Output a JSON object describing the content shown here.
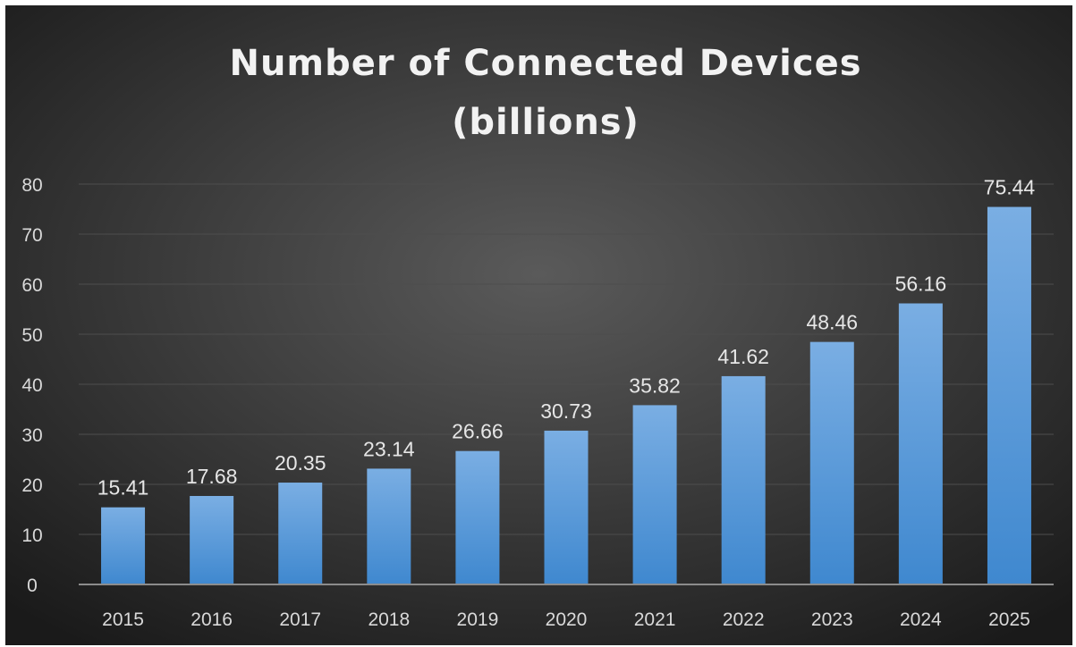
{
  "chart_data": {
    "type": "bar",
    "title_line1": "Number of Connected Devices",
    "title_line2": "(billions)",
    "categories": [
      "2015",
      "2016",
      "2017",
      "2018",
      "2019",
      "2020",
      "2021",
      "2022",
      "2023",
      "2024",
      "2025"
    ],
    "values": [
      15.41,
      17.68,
      20.35,
      23.14,
      26.66,
      30.73,
      35.82,
      41.62,
      48.46,
      56.16,
      75.44
    ],
    "data_labels": [
      "15.41",
      "17.68",
      "20.35",
      "23.14",
      "26.66",
      "30.73",
      "35.82",
      "41.62",
      "48.46",
      "56.16",
      "75.44"
    ],
    "y_ticks": [
      "0",
      "10",
      "20",
      "30",
      "40",
      "50",
      "60",
      "70",
      "80"
    ],
    "ylim": [
      0,
      80
    ],
    "grid": true,
    "legend": "none",
    "colors": {
      "background_center": "#5a5a5a",
      "background_edge": "#1a1a1a",
      "bar_top": "#7aaee3",
      "bar_bottom": "#3f88cf",
      "gridline": "#4d4d4d",
      "axis_line": "#8c8c8c"
    }
  }
}
